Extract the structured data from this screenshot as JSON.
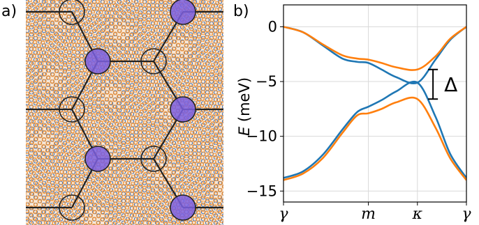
{
  "panels": {
    "a": {
      "label": "a)"
    },
    "b": {
      "label": "b)"
    }
  },
  "colors": {
    "lattice_orange": "#f28e2b",
    "lattice_blue": "#3b6fb5",
    "band_blue": "#1f77b4",
    "band_orange": "#ff7f0e",
    "site_fill": "#7b5fe0",
    "grid": "#d9d9d9"
  },
  "chart_data": {
    "type": "line",
    "xlabel": "",
    "ylabel": "E (meV)",
    "ylabel_italic": "E",
    "ylabel_rest": " (meV)",
    "xlim": [
      0,
      3.732
    ],
    "ylim": [
      -16,
      2
    ],
    "yticks": [
      0,
      -5,
      -10,
      -15
    ],
    "ytick_labels": [
      "0",
      "−5",
      "−10",
      "−15"
    ],
    "xticks": [
      0,
      1.732,
      2.732,
      3.732
    ],
    "xtick_labels": [
      "γ",
      "m",
      "κ",
      "γ"
    ],
    "grid": true,
    "annotation": {
      "text": "Δ",
      "x": 3.05,
      "y_top": -3.9,
      "y_bottom": -6.6
    },
    "series": [
      {
        "color": "#1f77b4",
        "points": [
          [
            0,
            0
          ],
          [
            0.4,
            -0.5
          ],
          [
            0.8,
            -1.7
          ],
          [
            1.2,
            -2.9
          ],
          [
            1.5,
            -3.2
          ],
          [
            1.732,
            -3.3
          ],
          [
            2.0,
            -3.9
          ],
          [
            2.3,
            -4.6
          ],
          [
            2.732,
            -5.1
          ],
          [
            3.1,
            -3.0
          ],
          [
            3.4,
            -1.2
          ],
          [
            3.732,
            0
          ]
        ]
      },
      {
        "color": "#1f77b4",
        "points": [
          [
            0,
            -13.8
          ],
          [
            0.4,
            -13.2
          ],
          [
            0.8,
            -11.7
          ],
          [
            1.2,
            -9.4
          ],
          [
            1.5,
            -7.8
          ],
          [
            1.732,
            -7.3
          ],
          [
            2.0,
            -6.7
          ],
          [
            2.3,
            -5.9
          ],
          [
            2.732,
            -5.1
          ],
          [
            3.1,
            -8.2
          ],
          [
            3.4,
            -11.6
          ],
          [
            3.732,
            -13.8
          ]
        ]
      },
      {
        "color": "#ff7f0e",
        "points": [
          [
            0,
            0
          ],
          [
            0.4,
            -0.5
          ],
          [
            0.8,
            -1.6
          ],
          [
            1.2,
            -2.6
          ],
          [
            1.5,
            -2.9
          ],
          [
            1.732,
            -3.0
          ],
          [
            2.0,
            -3.3
          ],
          [
            2.3,
            -3.7
          ],
          [
            2.732,
            -3.9
          ],
          [
            3.1,
            -2.7
          ],
          [
            3.4,
            -1.1
          ],
          [
            3.732,
            0
          ]
        ]
      },
      {
        "color": "#ff7f0e",
        "points": [
          [
            0,
            -14.0
          ],
          [
            0.4,
            -13.4
          ],
          [
            0.8,
            -12.0
          ],
          [
            1.2,
            -9.7
          ],
          [
            1.5,
            -8.1
          ],
          [
            1.732,
            -7.9
          ],
          [
            2.0,
            -7.5
          ],
          [
            2.3,
            -6.9
          ],
          [
            2.732,
            -6.6
          ],
          [
            3.1,
            -9.2
          ],
          [
            3.4,
            -12.0
          ],
          [
            3.732,
            -14.0
          ]
        ]
      }
    ]
  }
}
